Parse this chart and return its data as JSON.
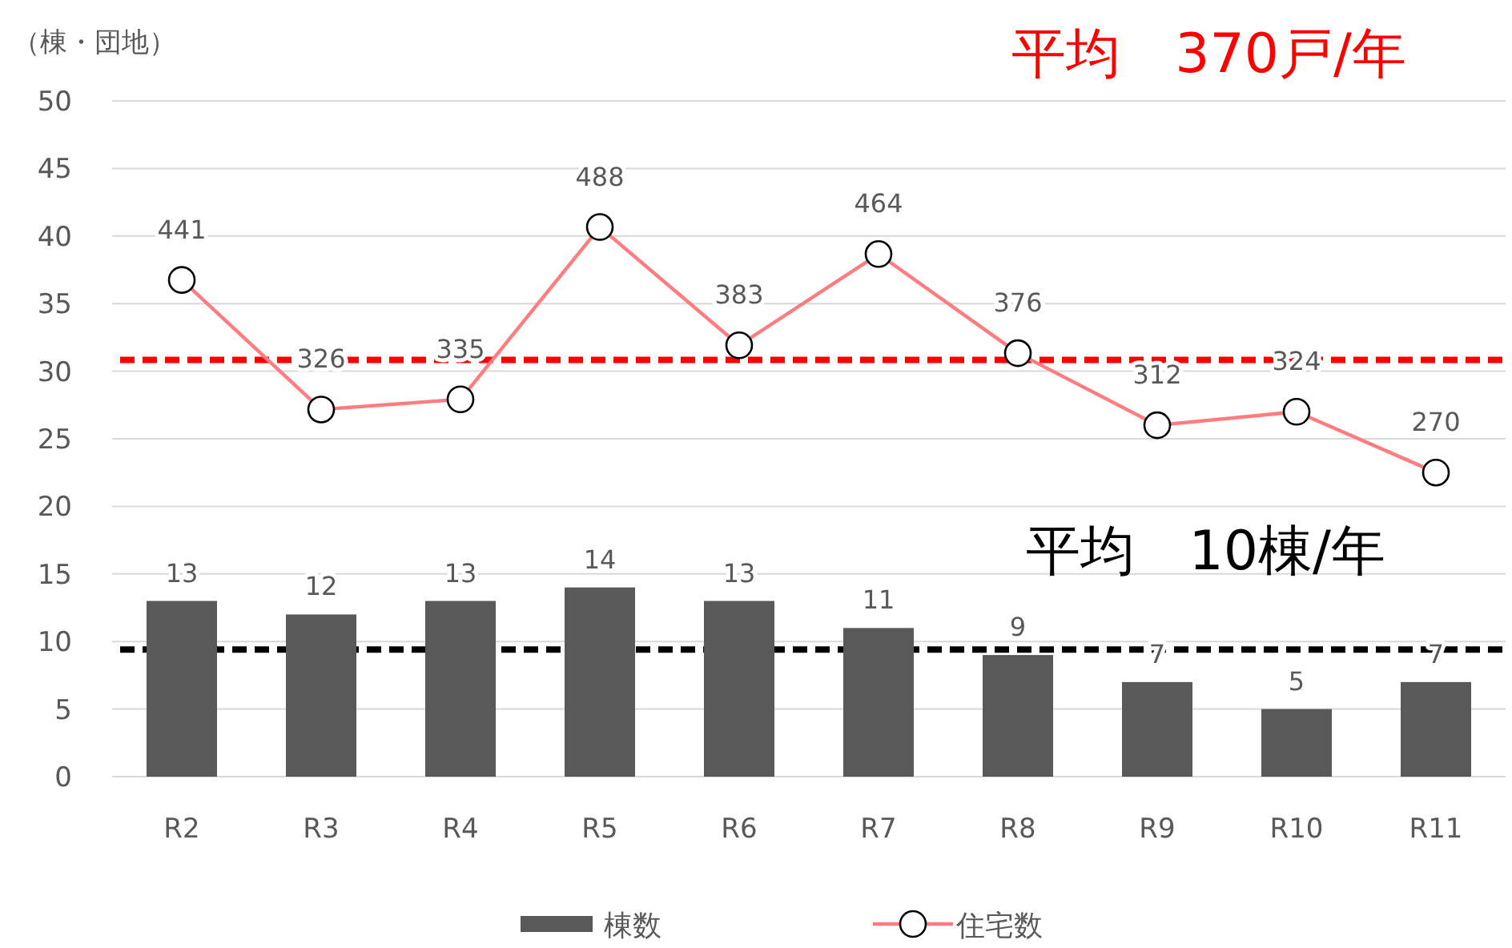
{
  "chart_data": {
    "type": "bar",
    "ylabel": "（棟・団地）",
    "categories": [
      "R2",
      "R3",
      "R4",
      "R5",
      "R6",
      "R7",
      "R8",
      "R9",
      "R10",
      "R11"
    ],
    "series": [
      {
        "name": "棟数",
        "color": "#595959",
        "values": [
          13,
          12,
          13,
          14,
          13,
          11,
          9,
          7,
          5,
          7
        ]
      },
      {
        "name": "住宅数",
        "type": "line",
        "axis": "y2",
        "color": "#ff7c80",
        "values": [
          441,
          326,
          335,
          488,
          383,
          464,
          376,
          312,
          324,
          270
        ]
      }
    ],
    "ylim": [
      0,
      50
    ],
    "yticks": [
      0,
      5,
      10,
      15,
      20,
      25,
      30,
      35,
      40,
      45,
      50
    ],
    "y2lim": [
      0,
      600
    ],
    "ref_lines": [
      {
        "axis": "y2",
        "value": 370,
        "label": "平均　370戸/年",
        "color": "#ff0000",
        "line_style": "dashed"
      },
      {
        "axis": "y",
        "value": 9.4,
        "label": "平均　10棟/年",
        "color": "#000000",
        "line_style": "dashed"
      }
    ],
    "grid": "y",
    "legend": "bottom",
    "marker": "circle",
    "data_labels": true
  }
}
